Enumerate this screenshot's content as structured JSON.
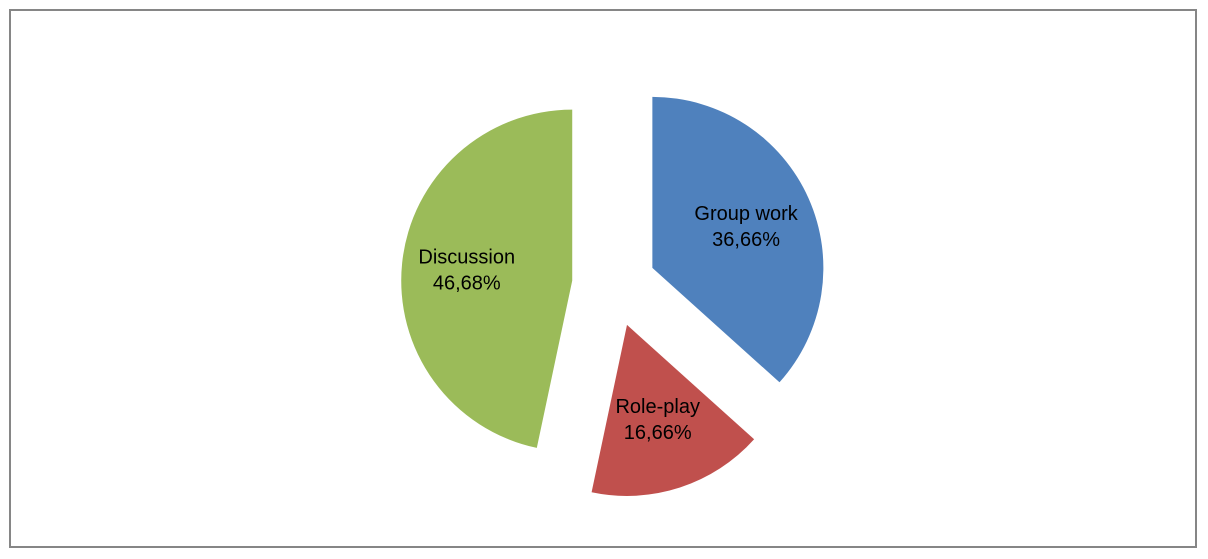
{
  "chart_data": {
    "type": "pie",
    "exploded": true,
    "slices": [
      {
        "label": "Group work",
        "value": 36.66,
        "value_label": "36,66%",
        "color": "#4f81bd"
      },
      {
        "label": "Role-play",
        "value": 16.66,
        "value_label": "16,66%",
        "color": "#c0504d"
      },
      {
        "label": "Discussion",
        "value": 46.68,
        "value_label": "46,68%",
        "color": "#9bbb59"
      }
    ],
    "start_angle_deg": 0,
    "direction": "clockwise",
    "title": "",
    "legend": "none"
  }
}
